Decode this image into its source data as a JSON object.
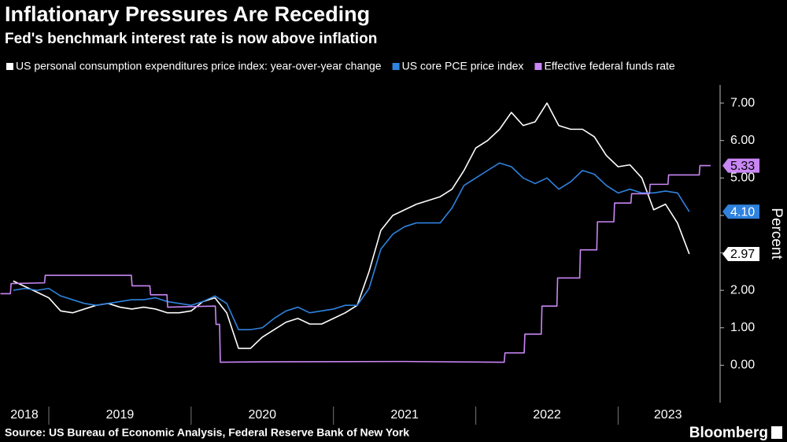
{
  "chart_data": {
    "type": "line",
    "title": "Inflationary Pressures Are Receding",
    "subtitle": "Fed's benchmark interest rate is now above inflation",
    "ylabel": "Percent",
    "source": "Source: US Bureau of Economic Analysis, Federal Reserve Bank of New York",
    "credit": "Bloomberg",
    "xlim": [
      2018.657,
      2023.7
    ],
    "xticks": [
      2019,
      2020,
      2021,
      2022,
      2023
    ],
    "xlabels": [
      2018,
      2019,
      2020,
      2021,
      2022,
      2023
    ],
    "ylim": [
      -1,
      7.4
    ],
    "yticks": [
      {
        "value": 0,
        "label": "0.00"
      },
      {
        "value": 1,
        "label": "1.00"
      },
      {
        "value": 2,
        "label": "2.00"
      },
      {
        "value": 3,
        "label": "3.00"
      },
      {
        "value": 4,
        "label": "4.00"
      },
      {
        "value": 5,
        "label": "5.00"
      },
      {
        "value": 6,
        "label": "6.00"
      },
      {
        "value": 7,
        "label": "7.00"
      }
    ],
    "grid": false,
    "series": [
      {
        "name": "US personal consumption expenditures price index: year-over-year change",
        "color": "#ffffff",
        "x": [
          2018.75,
          2018.833,
          2018.917,
          2019,
          2019.083,
          2019.167,
          2019.25,
          2019.333,
          2019.417,
          2019.5,
          2019.583,
          2019.667,
          2019.75,
          2019.833,
          2019.917,
          2020,
          2020.083,
          2020.167,
          2020.25,
          2020.333,
          2020.417,
          2020.5,
          2020.583,
          2020.667,
          2020.75,
          2020.833,
          2020.917,
          2021,
          2021.083,
          2021.167,
          2021.25,
          2021.333,
          2021.417,
          2021.5,
          2021.583,
          2021.667,
          2021.75,
          2021.833,
          2021.917,
          2022,
          2022.083,
          2022.167,
          2022.25,
          2022.333,
          2022.417,
          2022.5,
          2022.583,
          2022.667,
          2022.75,
          2022.833,
          2022.917,
          2023,
          2023.083,
          2023.167,
          2023.25,
          2023.333,
          2023.417,
          2023.5
        ],
        "values": [
          2.25,
          2.1,
          1.95,
          1.8,
          1.45,
          1.4,
          1.5,
          1.6,
          1.65,
          1.55,
          1.5,
          1.55,
          1.5,
          1.4,
          1.4,
          1.45,
          1.7,
          1.8,
          1.4,
          0.45,
          0.45,
          0.75,
          0.95,
          1.15,
          1.25,
          1.1,
          1.1,
          1.25,
          1.4,
          1.6,
          2.5,
          3.6,
          4.0,
          4.15,
          4.3,
          4.4,
          4.5,
          4.7,
          5.2,
          5.8,
          6.0,
          6.3,
          6.75,
          6.4,
          6.5,
          7.0,
          6.4,
          6.3,
          6.3,
          6.1,
          5.6,
          5.3,
          5.35,
          5.0,
          4.15,
          4.3,
          3.8,
          2.97
        ],
        "end_label": {
          "value": 2.97,
          "label": "2.97"
        }
      },
      {
        "name": "US core PCE price index",
        "color": "#2f82de",
        "x": [
          2018.75,
          2018.833,
          2018.917,
          2019,
          2019.083,
          2019.167,
          2019.25,
          2019.333,
          2019.417,
          2019.5,
          2019.583,
          2019.667,
          2019.75,
          2019.833,
          2019.917,
          2020,
          2020.083,
          2020.167,
          2020.25,
          2020.333,
          2020.417,
          2020.5,
          2020.583,
          2020.667,
          2020.75,
          2020.833,
          2020.917,
          2021,
          2021.083,
          2021.167,
          2021.25,
          2021.333,
          2021.417,
          2021.5,
          2021.583,
          2021.667,
          2021.75,
          2021.833,
          2021.917,
          2022,
          2022.083,
          2022.167,
          2022.25,
          2022.333,
          2022.417,
          2022.5,
          2022.583,
          2022.667,
          2022.75,
          2022.833,
          2022.917,
          2023,
          2023.083,
          2023.167,
          2023.25,
          2023.333,
          2023.417,
          2023.5
        ],
        "values": [
          2.0,
          2.05,
          2.0,
          2.05,
          1.85,
          1.75,
          1.65,
          1.6,
          1.65,
          1.7,
          1.75,
          1.75,
          1.8,
          1.7,
          1.65,
          1.6,
          1.7,
          1.85,
          1.65,
          0.95,
          0.95,
          1.0,
          1.25,
          1.45,
          1.55,
          1.4,
          1.45,
          1.5,
          1.6,
          1.6,
          2.05,
          3.1,
          3.5,
          3.7,
          3.8,
          3.8,
          3.8,
          4.2,
          4.8,
          5.0,
          5.2,
          5.4,
          5.3,
          5.0,
          4.85,
          5.0,
          4.7,
          4.9,
          5.2,
          5.1,
          4.8,
          4.6,
          4.7,
          4.6,
          4.6,
          4.65,
          4.6,
          4.1
        ],
        "end_label": {
          "value": 4.1,
          "label": "4.10"
        }
      },
      {
        "name": "Effective federal funds rate",
        "color": "#c986f5",
        "x": [
          2018.66,
          2018.73,
          2018.735,
          2018.97,
          2018.975,
          2019.58,
          2019.585,
          2019.71,
          2019.715,
          2019.83,
          2019.835,
          2020.17,
          2020.175,
          2020.2,
          2020.205,
          2020.5,
          2021.5,
          2022.2,
          2022.205,
          2022.34,
          2022.345,
          2022.46,
          2022.465,
          2022.57,
          2022.575,
          2022.73,
          2022.735,
          2022.85,
          2022.855,
          2022.97,
          2022.975,
          2023.09,
          2023.095,
          2023.22,
          2023.225,
          2023.35,
          2023.355,
          2023.57,
          2023.575,
          2023.65
        ],
        "values": [
          1.91,
          1.91,
          2.18,
          2.2,
          2.4,
          2.4,
          2.12,
          2.12,
          1.88,
          1.88,
          1.55,
          1.58,
          1.09,
          1.09,
          0.08,
          0.09,
          0.1,
          0.08,
          0.33,
          0.33,
          0.83,
          0.83,
          1.58,
          1.58,
          2.33,
          2.33,
          3.08,
          3.08,
          3.83,
          3.83,
          4.33,
          4.33,
          4.58,
          4.58,
          4.83,
          4.83,
          5.08,
          5.08,
          5.33,
          5.33
        ],
        "end_label": {
          "value": 5.33,
          "label": "5.33"
        }
      }
    ]
  }
}
